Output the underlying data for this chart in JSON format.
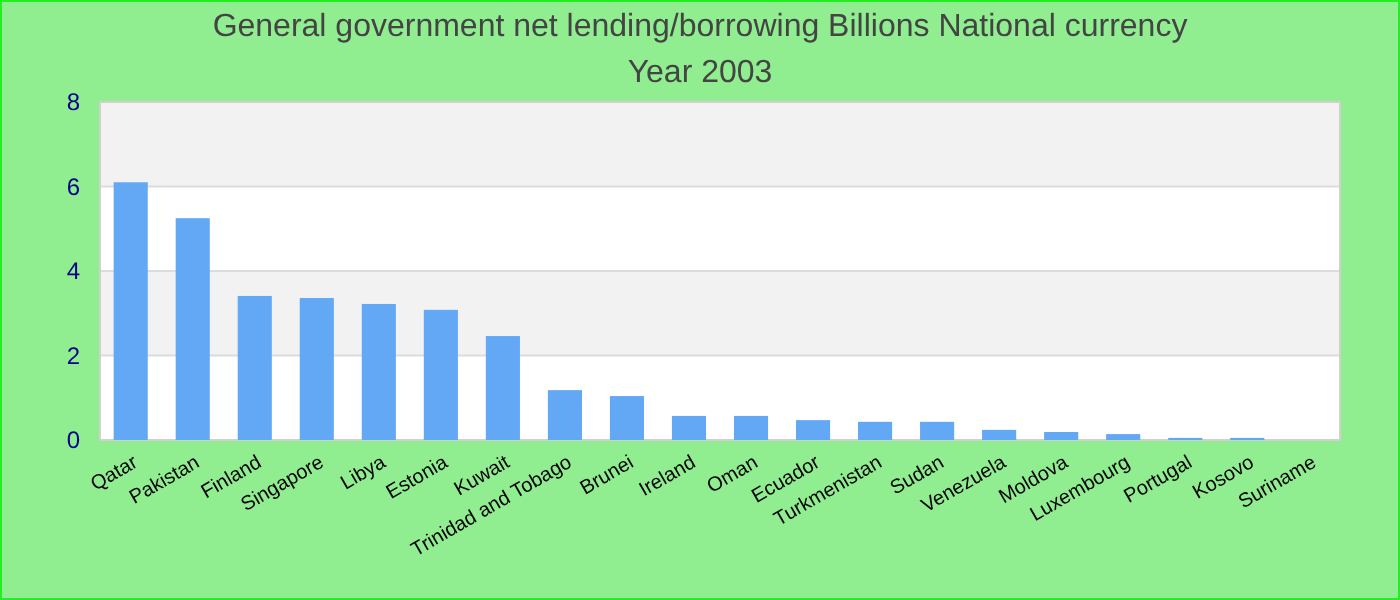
{
  "chart_data": {
    "type": "bar",
    "title": "General government net lending/borrowing Billions National currency",
    "subtitle": "Year 2003",
    "categories": [
      "Qatar",
      "Pakistan",
      "Finland",
      "Singapore",
      "Libya",
      "Estonia",
      "Kuwait",
      "Trinidad and Tobago",
      "Brunei",
      "Ireland",
      "Oman",
      "Ecuador",
      "Turkmenistan",
      "Sudan",
      "Venezuela",
      "Moldova",
      "Luxembourg",
      "Portugal",
      "Kosovo",
      "Suriname"
    ],
    "values": [
      6.1,
      5.25,
      3.41,
      3.36,
      3.22,
      3.08,
      2.46,
      1.18,
      1.04,
      0.57,
      0.57,
      0.47,
      0.43,
      0.43,
      0.24,
      0.19,
      0.14,
      0.05,
      0.05,
      0
    ],
    "color": "#63a8f4",
    "ylim": [
      0,
      8
    ],
    "yticks": [
      0,
      2,
      4,
      6,
      8
    ],
    "grid": "y"
  }
}
